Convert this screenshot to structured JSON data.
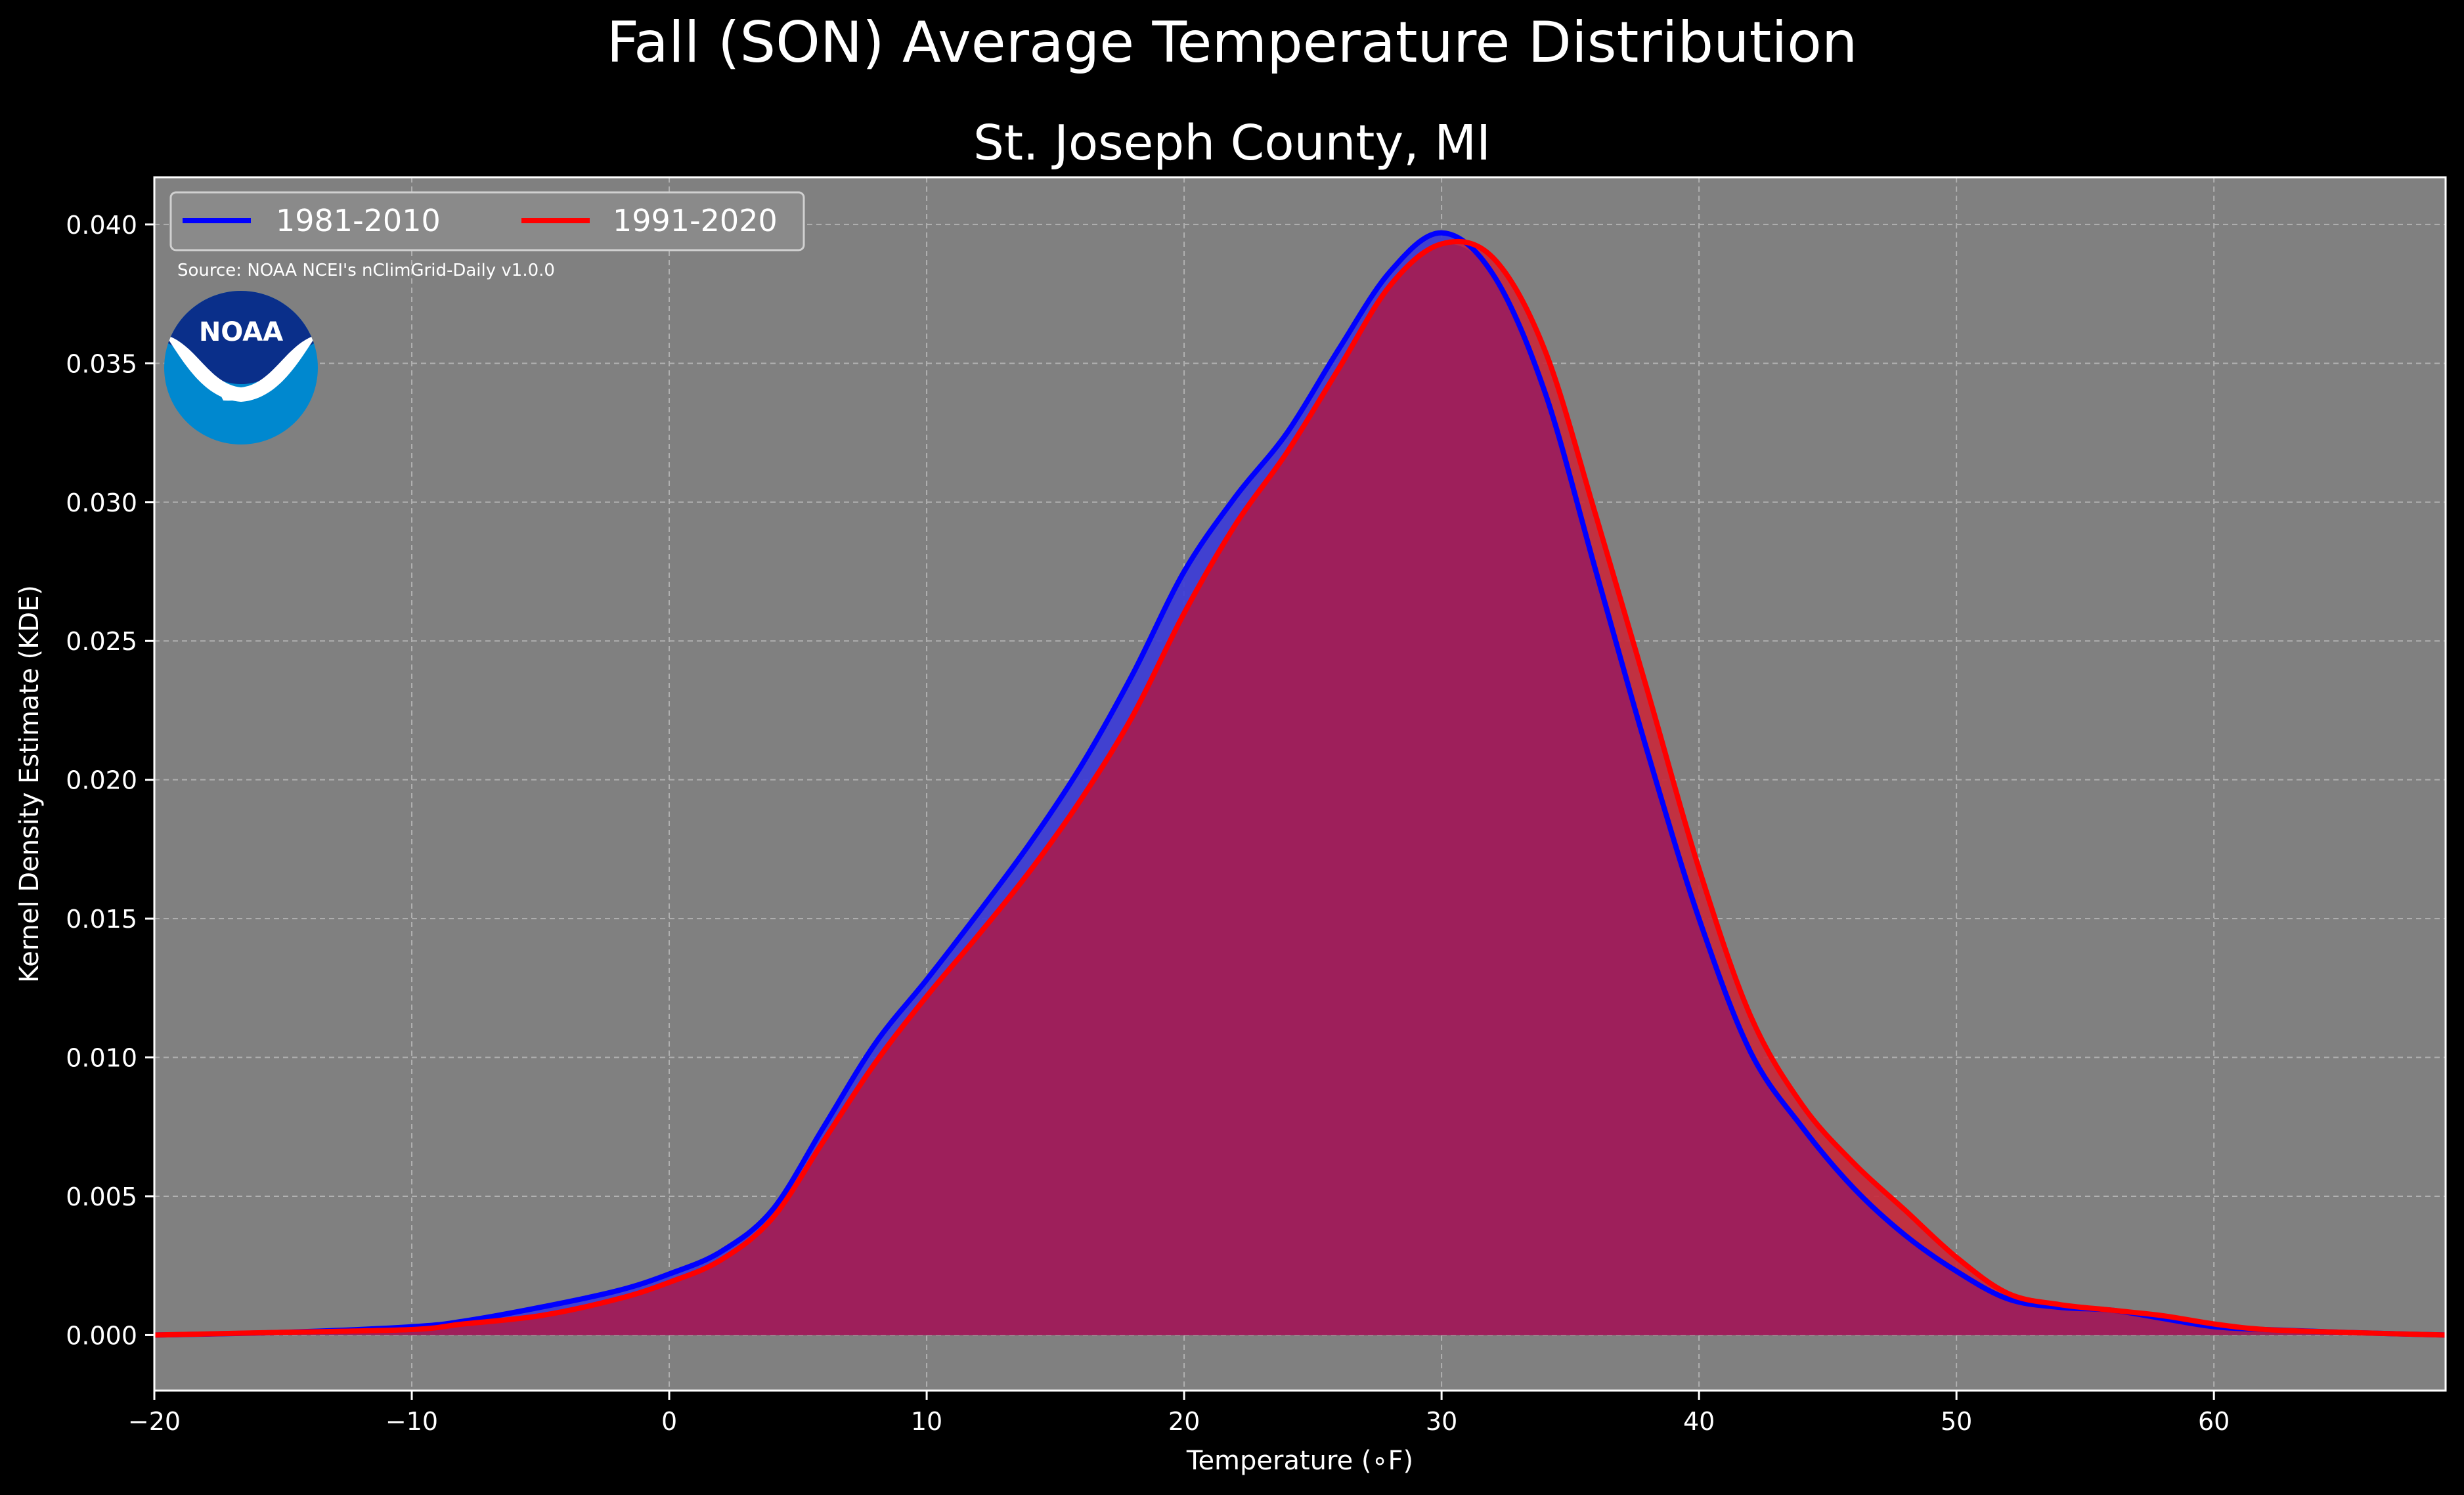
{
  "chart_data": {
    "type": "area",
    "title": "Fall (SON) Average Temperature Distribution",
    "subtitle": "St. Joseph County, MI",
    "xlabel": "Temperature (∘F)",
    "ylabel": "Kernel Density Estimate (KDE)",
    "xlim": [
      -20,
      69
    ],
    "ylim": [
      -0.002,
      0.0417
    ],
    "x_ticks": [
      -20,
      -10,
      0,
      10,
      20,
      30,
      40,
      50,
      60
    ],
    "x_tick_labels": [
      "−20",
      "−10",
      "0",
      "10",
      "20",
      "30",
      "40",
      "50",
      "60"
    ],
    "y_ticks": [
      0.0,
      0.005,
      0.01,
      0.015,
      0.02,
      0.025,
      0.03,
      0.035,
      0.04
    ],
    "y_tick_labels": [
      "0.000",
      "0.005",
      "0.010",
      "0.015",
      "0.020",
      "0.025",
      "0.030",
      "0.035",
      "0.040"
    ],
    "grid": true,
    "legend_position": "top-left",
    "source_note": "Source: NOAA NCEI's nClimGrid-Daily v1.0.0",
    "logo_text": "NOAA",
    "colors": {
      "figure_bg": "#000000",
      "axes_bg": "#808080",
      "grid": "#b0b0b0",
      "fill": "#9e1f5b",
      "series_1981": "#0000ff",
      "series_1991": "#ff0000",
      "logo_dark": "#0a2f8a",
      "logo_light": "#0088cf"
    },
    "series": [
      {
        "name": "1981-2010",
        "color": "#0000ff",
        "x": [
          -20,
          -15,
          -10,
          -8,
          -5,
          -2,
          0,
          2,
          4,
          6,
          8,
          10,
          12,
          14,
          16,
          18,
          20,
          22,
          24,
          26,
          28,
          30,
          32,
          34,
          36,
          38,
          40,
          42,
          44,
          46,
          48,
          50,
          52,
          54,
          56,
          58,
          60,
          62,
          65,
          69
        ],
        "y": [
          0.0,
          0.0001,
          0.0003,
          0.0005,
          0.001,
          0.0016,
          0.0022,
          0.003,
          0.0045,
          0.0075,
          0.0105,
          0.0128,
          0.0152,
          0.0177,
          0.0205,
          0.0238,
          0.0275,
          0.0302,
          0.0325,
          0.0355,
          0.0383,
          0.0397,
          0.0382,
          0.034,
          0.0275,
          0.021,
          0.015,
          0.0102,
          0.0075,
          0.0053,
          0.0036,
          0.0023,
          0.0013,
          0.001,
          0.0009,
          0.0006,
          0.0003,
          0.0002,
          0.0001,
          0.0
        ]
      },
      {
        "name": "1991-2020",
        "color": "#ff0000",
        "x": [
          -20,
          -15,
          -10,
          -8,
          -5,
          -2,
          0,
          2,
          4,
          6,
          8,
          10,
          12,
          14,
          16,
          18,
          20,
          22,
          24,
          26,
          28,
          30,
          32,
          34,
          36,
          38,
          40,
          42,
          44,
          46,
          48,
          50,
          52,
          54,
          56,
          58,
          60,
          62,
          65,
          69
        ],
        "y": [
          0.0,
          0.0001,
          0.0002,
          0.0004,
          0.0007,
          0.0013,
          0.0019,
          0.0027,
          0.0042,
          0.007,
          0.0098,
          0.0122,
          0.0144,
          0.0167,
          0.0193,
          0.0223,
          0.026,
          0.0292,
          0.0318,
          0.0348,
          0.0378,
          0.0393,
          0.0388,
          0.0355,
          0.0295,
          0.0232,
          0.0168,
          0.0115,
          0.0083,
          0.0062,
          0.0045,
          0.0028,
          0.0015,
          0.0011,
          0.0009,
          0.0007,
          0.0004,
          0.0002,
          0.0001,
          0.0
        ]
      }
    ]
  }
}
